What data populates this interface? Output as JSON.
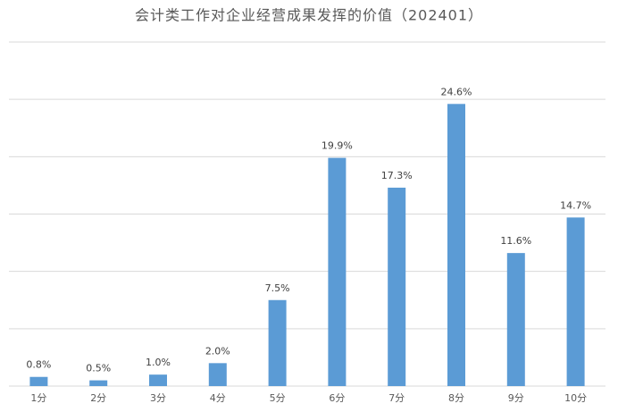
{
  "chart_data": {
    "type": "bar",
    "title": "会计类工作对企业经营成果发挥的价值（202401）",
    "categories": [
      "1分",
      "2分",
      "3分",
      "4分",
      "5分",
      "6分",
      "7分",
      "8分",
      "9分",
      "10分"
    ],
    "values": [
      0.8,
      0.5,
      1.0,
      2.0,
      7.5,
      19.9,
      17.3,
      24.6,
      11.6,
      14.7
    ],
    "value_labels": [
      "0.8%",
      "0.5%",
      "1.0%",
      "2.0%",
      "7.5%",
      "19.9%",
      "17.3%",
      "24.6%",
      "11.6%",
      "14.7%"
    ],
    "color": "#5b9bd5",
    "ylim": [
      0,
      30
    ],
    "yticks": [
      0,
      5,
      10,
      15,
      20,
      25,
      30
    ],
    "grid": true
  }
}
